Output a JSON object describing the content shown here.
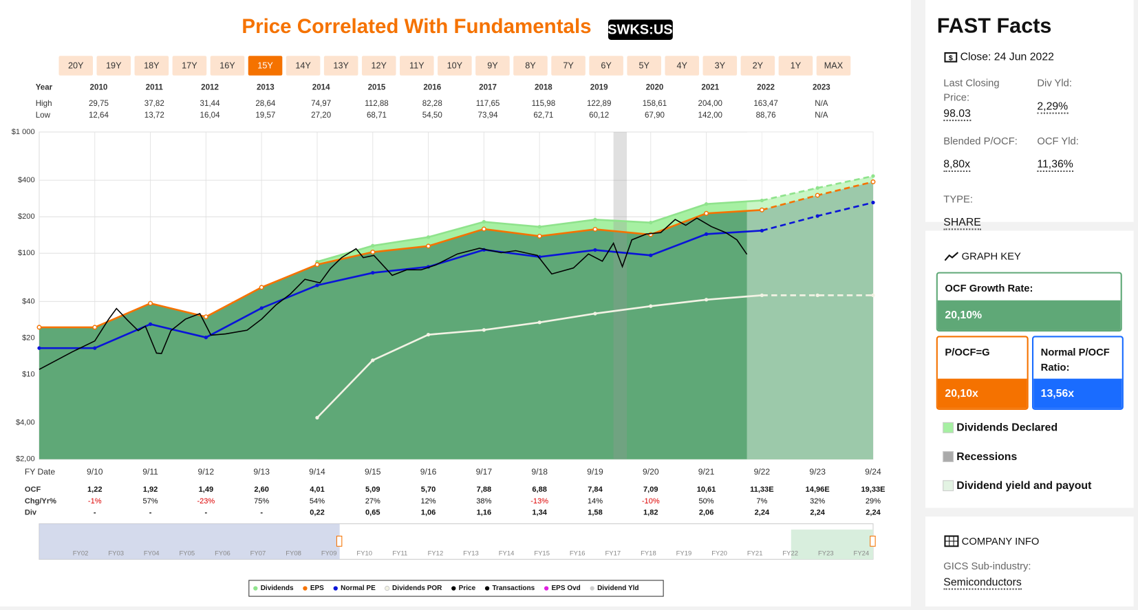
{
  "chart_data": {
    "type": "line",
    "title": "Price Correlated With Fundamentals",
    "ticker": "SWKS:US",
    "ranges": [
      "20Y",
      "19Y",
      "18Y",
      "17Y",
      "16Y",
      "15Y",
      "14Y",
      "13Y",
      "12Y",
      "11Y",
      "10Y",
      "9Y",
      "8Y",
      "7Y",
      "6Y",
      "5Y",
      "4Y",
      "3Y",
      "2Y",
      "1Y",
      "MAX"
    ],
    "selected_range": "15Y",
    "summary": {
      "header": "Year",
      "years": [
        "2010",
        "2011",
        "2012",
        "2013",
        "2014",
        "2015",
        "2016",
        "2017",
        "2018",
        "2019",
        "2020",
        "2021",
        "2022",
        "2023"
      ],
      "high_label": "High",
      "highs": [
        "29,75",
        "37,82",
        "31,44",
        "28,64",
        "74,97",
        "112,88",
        "82,28",
        "117,65",
        "115,98",
        "122,89",
        "158,61",
        "204,00",
        "163,47",
        "N/A"
      ],
      "low_label": "Low",
      "lows": [
        "12,64",
        "13,72",
        "16,04",
        "19,57",
        "27,20",
        "68,71",
        "54,50",
        "73,94",
        "62,71",
        "60,12",
        "67,90",
        "142,00",
        "88,76",
        "N/A"
      ]
    },
    "x_label": "FY Date",
    "xlim": [
      2009.75,
      2024.75
    ],
    "xticks": [
      {
        "value": 2010.75,
        "label": "9/10"
      },
      {
        "value": 2011.75,
        "label": "9/11"
      },
      {
        "value": 2012.75,
        "label": "9/12"
      },
      {
        "value": 2013.75,
        "label": "9/13"
      },
      {
        "value": 2014.75,
        "label": "9/14"
      },
      {
        "value": 2015.75,
        "label": "9/15"
      },
      {
        "value": 2016.75,
        "label": "9/16"
      },
      {
        "value": 2017.75,
        "label": "9/17"
      },
      {
        "value": 2018.75,
        "label": "9/18"
      },
      {
        "value": 2019.75,
        "label": "9/19"
      },
      {
        "value": 2020.75,
        "label": "9/20"
      },
      {
        "value": 2021.75,
        "label": "9/21"
      },
      {
        "value": 2022.75,
        "label": "9/22"
      },
      {
        "value": 2023.75,
        "label": "9/23"
      },
      {
        "value": 2024.75,
        "label": "9/24"
      }
    ],
    "ylim": [
      2,
      1000
    ],
    "yticks": [
      {
        "value": 2,
        "label": "$2,00"
      },
      {
        "value": 4,
        "label": "$4,00"
      },
      {
        "value": 10,
        "label": "$10"
      },
      {
        "value": 20,
        "label": "$20"
      },
      {
        "value": 40,
        "label": "$40"
      },
      {
        "value": 100,
        "label": "$100"
      },
      {
        "value": 200,
        "label": "$200"
      },
      {
        "value": 400,
        "label": "$400"
      },
      {
        "value": 1000,
        "label": "$1 000"
      }
    ],
    "log_scale": true,
    "grid": true,
    "forecast_start": 2022.48,
    "recessions": [
      [
        2020.08,
        2020.32
      ]
    ],
    "x": [
      2009.75,
      2010.75,
      2011.75,
      2012.75,
      2013.75,
      2014.75,
      2015.75,
      2016.75,
      2017.75,
      2018.75,
      2019.75,
      2020.75,
      2021.75,
      2022.75,
      2023.75,
      2024.75
    ],
    "series": [
      {
        "name": "Dividends",
        "color": "#8fe38c",
        "fill": "#a6f0a2",
        "marker": true,
        "values": [
          null,
          null,
          null,
          null,
          null,
          85.0,
          115.4,
          135.9,
          181.7,
          165.2,
          189.4,
          179.1,
          254.7,
          272.7,
          345.7,
          433.5
        ]
      },
      {
        "name": "EPS",
        "color": "#f57200",
        "fill": "#5fa877",
        "marker": true,
        "values": [
          24.5,
          24.5,
          38.6,
          29.9,
          52.3,
          80.6,
          102.3,
          114.6,
          158.4,
          138.3,
          157.6,
          142.5,
          213.3,
          227.7,
          300.7,
          388.5
        ]
      },
      {
        "name": "Normal PE",
        "color": "#0a14d8",
        "marker": true,
        "values": [
          16.5,
          16.5,
          26.0,
          20.2,
          35.3,
          54.4,
          69.0,
          77.3,
          106.8,
          93.3,
          106.3,
          96.1,
          143.9,
          153.7,
          202.9,
          262.1
        ]
      },
      {
        "name": "Dividends POR",
        "color": "#f2f2e4",
        "marker": true,
        "values": [
          null,
          null,
          null,
          null,
          null,
          4.4,
          13.1,
          21.3,
          23.3,
          26.9,
          31.8,
          36.6,
          41.4,
          45.0,
          45.0,
          45.0
        ]
      },
      {
        "name": "Price",
        "color": "#000000",
        "x": [
          2009.75,
          2010.35,
          2010.75,
          2011.0,
          2011.14,
          2011.34,
          2011.53,
          2011.66,
          2011.86,
          2011.95,
          2012.12,
          2012.38,
          2012.64,
          2012.84,
          2013.1,
          2013.49,
          2013.75,
          2014.01,
          2014.27,
          2014.53,
          2014.8,
          2014.99,
          2015.19,
          2015.45,
          2015.58,
          2015.77,
          2016.1,
          2016.36,
          2016.62,
          2016.88,
          2017.27,
          2017.67,
          2018.06,
          2018.32,
          2018.71,
          2018.97,
          2019.36,
          2019.63,
          2019.88,
          2020.08,
          2020.24,
          2020.41,
          2020.67,
          2020.93,
          2021.19,
          2021.38,
          2021.58,
          2021.84,
          2022.1,
          2022.3,
          2022.48
        ],
        "values": [
          11,
          15.4,
          18.9,
          28.6,
          35,
          28,
          23,
          25,
          15,
          14.9,
          23,
          28.6,
          31.8,
          21.1,
          21.6,
          23.2,
          28.6,
          37.5,
          46.2,
          61,
          57,
          75,
          92,
          109,
          92,
          96,
          65.7,
          73,
          73,
          80,
          98.6,
          110,
          101,
          105,
          96,
          67.5,
          75.6,
          98.6,
          86,
          121,
          77.6,
          129,
          144,
          148,
          190,
          170,
          195,
          166,
          148,
          129,
          98
        ]
      }
    ],
    "extra_legend": [
      {
        "name": "Transactions",
        "color": "#000000"
      },
      {
        "name": "EPS Ovd",
        "color": "#e020e0"
      },
      {
        "name": "Dividend Yld",
        "color": "#cccccc"
      }
    ],
    "fundamentals": {
      "rows": [
        {
          "label": "OCF",
          "cells": [
            "1,22",
            "1,92",
            "1,49",
            "2,60",
            "4,01",
            "5,09",
            "5,70",
            "7,88",
            "6,88",
            "7,84",
            "7,09",
            "10,61",
            "11,33E",
            "14,96E",
            "19,33E"
          ]
        },
        {
          "label": "Chg/Yr%",
          "cells": [
            "-1%",
            "57%",
            "-23%",
            "75%",
            "54%",
            "27%",
            "12%",
            "38%",
            "-13%",
            "14%",
            "-10%",
            "50%",
            "7%",
            "32%",
            "29%"
          ]
        },
        {
          "label": "Div",
          "cells": [
            "-",
            "-",
            "-",
            "-",
            "0,22",
            "0,65",
            "1,06",
            "1,16",
            "1,34",
            "1,58",
            "1,82",
            "2,06",
            "2,24",
            "2,24",
            "2,24"
          ]
        }
      ]
    },
    "navigator_labels": [
      "FY02",
      "FY03",
      "FY04",
      "FY05",
      "FY06",
      "FY07",
      "FY08",
      "FY09",
      "FY10",
      "FY11",
      "FY12",
      "FY13",
      "FY14",
      "FY15",
      "FY16",
      "FY17",
      "FY18",
      "FY19",
      "FY20",
      "FY21",
      "FY22",
      "FY23",
      "FY24"
    ]
  },
  "facts": {
    "title": "FAST Facts",
    "close": "Close: 24 Jun 2022",
    "items": [
      {
        "label": "Last Closing Price:",
        "value": "98.03"
      },
      {
        "label": "Div Yld:",
        "value": "2,29%"
      },
      {
        "label": "Blended P/OCF:",
        "value": "8,80x"
      },
      {
        "label": "OCF Yld:",
        "value": "11,36%"
      },
      {
        "label": "TYPE:",
        "value": "SHARE"
      }
    ]
  },
  "graph_key": {
    "title": "GRAPH KEY",
    "boxes": [
      {
        "label": "OCF Growth Rate:",
        "value": "20,10%",
        "color": "#5fa877"
      },
      {
        "label": "P/OCF=G",
        "value": "20,10x",
        "color": "#f57200"
      },
      {
        "label": "Normal P/OCF Ratio:",
        "value": "13,56x",
        "color": "#1a6cff"
      }
    ],
    "keys": [
      {
        "label": "Dividends Declared",
        "color": "#a6f0a2"
      },
      {
        "label": "Recessions",
        "color": "#aaaaaa"
      },
      {
        "label": "Dividend yield and payout",
        "color": "#e3f3e3"
      }
    ]
  },
  "company_info": {
    "title": "COMPANY INFO",
    "items": [
      {
        "label": "GICS Sub-industry:",
        "value": "Semiconductors"
      }
    ]
  }
}
